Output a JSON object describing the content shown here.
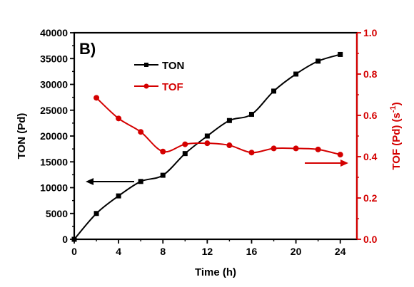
{
  "panel_label": "B)",
  "colors": {
    "ton": "#000000",
    "tof": "#d40000"
  },
  "chart_data": {
    "type": "line",
    "xlabel": "Time (h)",
    "ylabel_left": "TON (Pd)",
    "ylabel_right_main": "TOF (Pd) (s",
    "ylabel_right_sup": "-1",
    "ylabel_right_end": ")",
    "xlim": [
      0,
      25.5
    ],
    "ylim_left": [
      0,
      40000
    ],
    "ylim_right": [
      0,
      1.0
    ],
    "x_ticks": [
      0,
      4,
      8,
      12,
      16,
      20,
      24
    ],
    "y_ticks_left": [
      0,
      5000,
      10000,
      15000,
      20000,
      25000,
      30000,
      35000,
      40000
    ],
    "y_ticks_right": [
      "0.0",
      "0.2",
      "0.4",
      "0.6",
      "0.8",
      "1.0"
    ],
    "series": [
      {
        "name": "TON",
        "axis": "left",
        "marker": "square",
        "x": [
          0,
          2,
          4,
          6,
          8,
          10,
          12,
          14,
          16,
          18,
          20,
          22,
          24
        ],
        "y": [
          0,
          5000,
          8400,
          11200,
          12400,
          16600,
          20000,
          23000,
          24200,
          28700,
          32000,
          34500,
          35800
        ]
      },
      {
        "name": "TOF",
        "axis": "right",
        "marker": "circle",
        "x": [
          2,
          4,
          6,
          8,
          10,
          12,
          14,
          16,
          18,
          20,
          22,
          24
        ],
        "y": [
          0.685,
          0.585,
          0.52,
          0.425,
          0.46,
          0.465,
          0.455,
          0.42,
          0.44,
          0.44,
          0.435,
          0.41
        ]
      }
    ]
  }
}
